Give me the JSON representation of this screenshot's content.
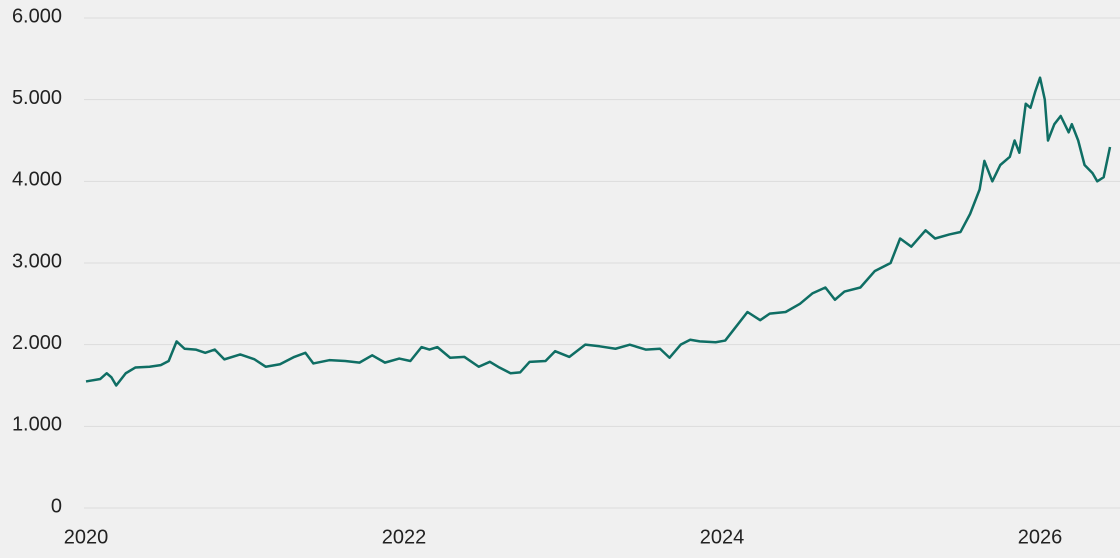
{
  "chart_data": {
    "type": "line",
    "x": [
      2020.0,
      2020.09,
      2020.13,
      2020.16,
      2020.19,
      2020.25,
      2020.31,
      2020.4,
      2020.47,
      2020.52,
      2020.57,
      2020.62,
      2020.69,
      2020.75,
      2020.81,
      2020.87,
      2020.97,
      2021.06,
      2021.13,
      2021.22,
      2021.31,
      2021.38,
      2021.43,
      2021.53,
      2021.63,
      2021.72,
      2021.8,
      2021.88,
      2021.97,
      2022.04,
      2022.11,
      2022.16,
      2022.21,
      2022.29,
      2022.38,
      2022.47,
      2022.54,
      2022.6,
      2022.67,
      2022.73,
      2022.79,
      2022.89,
      2022.95,
      2023.04,
      2023.14,
      2023.23,
      2023.33,
      2023.42,
      2023.52,
      2023.61,
      2023.67,
      2023.74,
      2023.8,
      2023.86,
      2023.96,
      2024.02,
      2024.08,
      2024.16,
      2024.24,
      2024.3,
      2024.4,
      2024.49,
      2024.57,
      2024.65,
      2024.71,
      2024.77,
      2024.87,
      2024.96,
      2025.06,
      2025.12,
      2025.19,
      2025.28,
      2025.34,
      2025.43,
      2025.5,
      2025.56,
      2025.62,
      2025.65,
      2025.7,
      2025.75,
      2025.81,
      2025.84,
      2025.87,
      2025.91,
      2025.94,
      2025.97,
      2026.0,
      2026.03,
      2026.05,
      2026.09,
      2026.13,
      2026.18,
      2026.2,
      2026.24,
      2026.28,
      2026.33,
      2026.36,
      2026.4,
      2026.44
    ],
    "series": [
      {
        "color": "#0f6e64",
        "values": [
          1550,
          1580,
          1650,
          1600,
          1500,
          1650,
          1720,
          1730,
          1750,
          1800,
          2040,
          1950,
          1940,
          1900,
          1940,
          1820,
          1880,
          1820,
          1730,
          1760,
          1850,
          1900,
          1770,
          1810,
          1800,
          1780,
          1870,
          1780,
          1830,
          1800,
          1970,
          1940,
          1970,
          1840,
          1850,
          1730,
          1790,
          1720,
          1650,
          1660,
          1790,
          1800,
          1920,
          1850,
          2000,
          1980,
          1950,
          2000,
          1940,
          1950,
          1840,
          2000,
          2060,
          2040,
          2030,
          2050,
          2200,
          2400,
          2300,
          2380,
          2400,
          2500,
          2630,
          2700,
          2550,
          2650,
          2700,
          2900,
          3000,
          3300,
          3200,
          3400,
          3300,
          3350,
          3380,
          3600,
          3900,
          4250,
          4000,
          4200,
          4300,
          4500,
          4350,
          4950,
          4900,
          5100,
          5270,
          5000,
          4500,
          4700,
          4800,
          4600,
          4700,
          4500,
          4200,
          4100,
          4000,
          4050,
          4420
        ]
      }
    ],
    "xlim": [
      2020,
      2026.44
    ],
    "xticks": [
      2020,
      2022,
      2024,
      2026
    ],
    "ylim": [
      0,
      6000
    ],
    "yticks": [
      0,
      {
        "value": 1000,
        "label": "1.000"
      },
      {
        "value": 2000,
        "label": "2.000"
      },
      {
        "value": 3000,
        "label": "3.000"
      },
      {
        "value": 4000,
        "label": "4.000"
      },
      {
        "value": 5000,
        "label": "5.000"
      },
      {
        "value": 6000,
        "label": "6.000"
      }
    ],
    "grid": true
  }
}
